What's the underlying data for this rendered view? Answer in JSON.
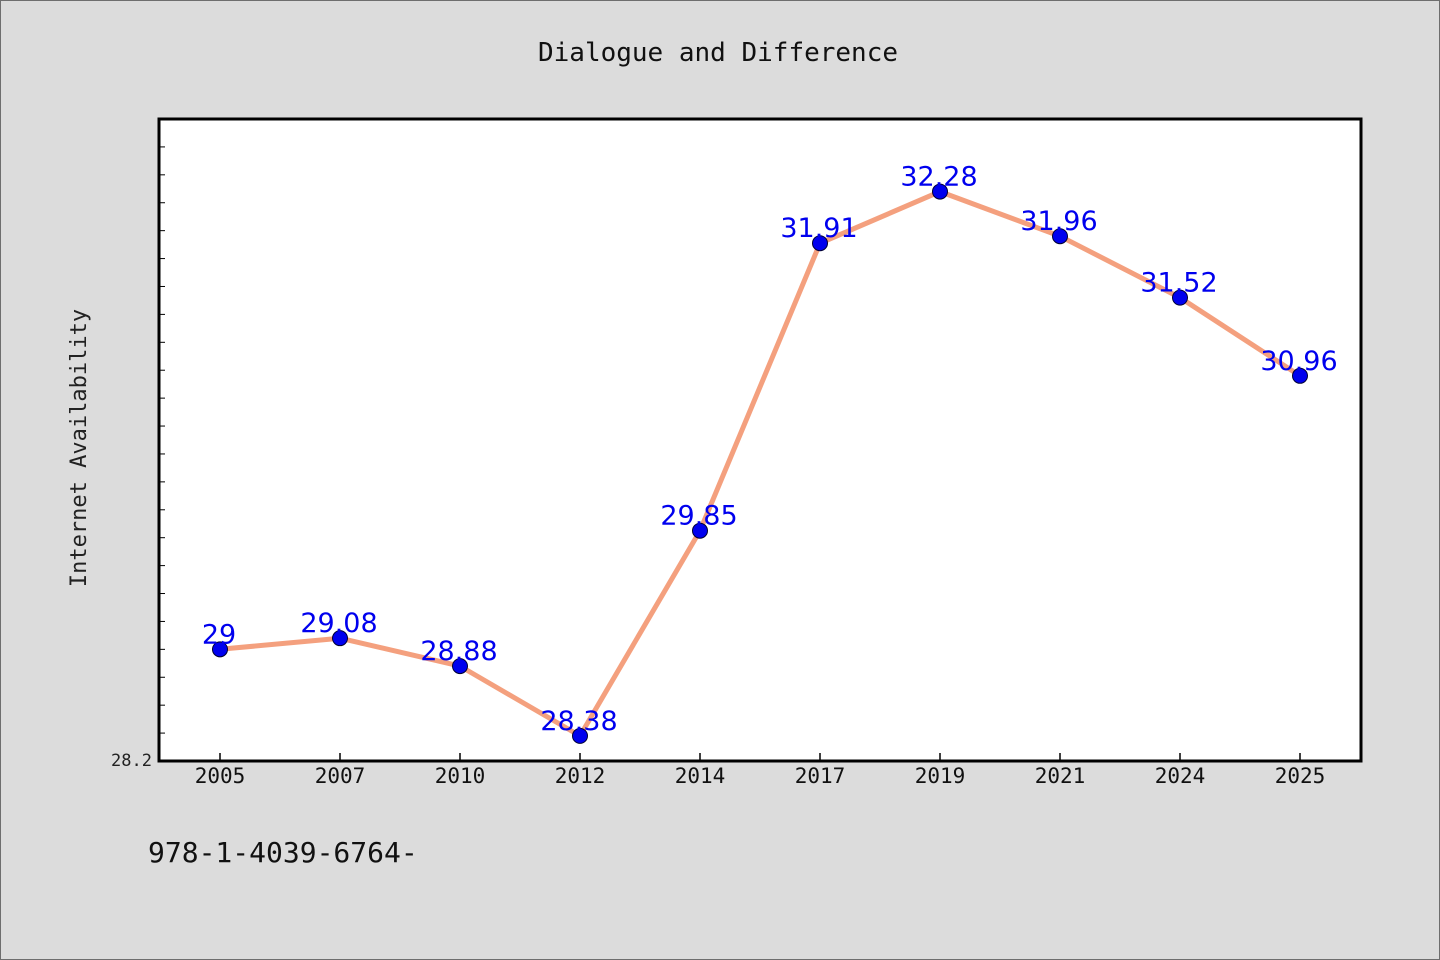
{
  "chart_data": {
    "type": "line",
    "title": "Dialogue and Difference",
    "ylabel": "Internet Availability",
    "xlabel": "",
    "categories": [
      "2005",
      "2007",
      "2010",
      "2012",
      "2014",
      "2017",
      "2019",
      "2021",
      "2024",
      "2025"
    ],
    "series": [
      {
        "values": [
          29,
          29.08,
          28.88,
          28.38,
          29.85,
          31.91,
          32.28,
          31.96,
          31.52,
          30.96
        ],
        "data_labels": [
          "29",
          "29.08",
          "28.88",
          "28.38",
          "29.85",
          "31.91",
          "32.28",
          "31.96",
          "31.52",
          30.96
        ]
      }
    ],
    "ylim": [
      28.2,
      32.8
    ],
    "y_tick_label": "28.2",
    "grid": false,
    "legend": "none",
    "colors": {
      "line": "#f4a07e",
      "marker": "#0000ee",
      "data_label": "#0000ee",
      "plot_background": "#ffffff",
      "page_background": "#dcdcdc"
    }
  },
  "footer_text": "978-1-4039-6764-"
}
